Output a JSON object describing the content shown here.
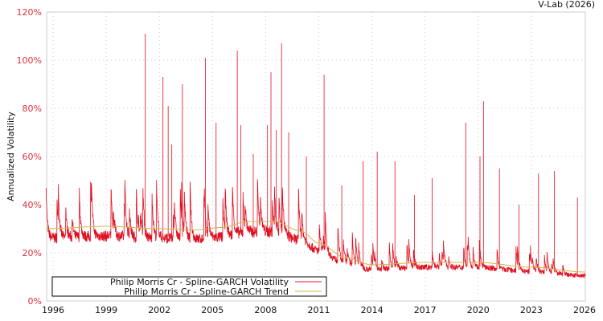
{
  "chart_data": {
    "type": "line",
    "title": "",
    "credit": "V-Lab (2026)",
    "ylabel": "Annualized Volatility",
    "xlabel": "",
    "xlim": [
      1995.6,
      2026.05
    ],
    "ylim": [
      0,
      120
    ],
    "yticks": [
      "0%",
      "20%",
      "40%",
      "60%",
      "80%",
      "100%",
      "120%"
    ],
    "ytick_values": [
      0,
      20,
      40,
      60,
      80,
      100,
      120
    ],
    "xticks": [
      "1996",
      "1999",
      "2002",
      "2005",
      "2008",
      "2011",
      "2014",
      "2017",
      "2020",
      "2023",
      "2026"
    ],
    "xtick_values": [
      1996,
      1999,
      2002,
      2005,
      2008,
      2011,
      2014,
      2017,
      2020,
      2023,
      2026
    ],
    "grid": true,
    "legend_position": "bottom-left",
    "series": [
      {
        "name": "Philip Morris Cr - Spline-GARCH Volatility",
        "color": "#e01020",
        "spikes": [
          [
            2001.2,
            111
          ],
          [
            2002.2,
            93
          ],
          [
            2002.5,
            81
          ],
          [
            2002.7,
            65
          ],
          [
            2003.3,
            90
          ],
          [
            2004.6,
            101
          ],
          [
            2005.2,
            74
          ],
          [
            2006.4,
            104
          ],
          [
            2006.6,
            73
          ],
          [
            2007.3,
            61
          ],
          [
            2008.1,
            73
          ],
          [
            2008.3,
            95
          ],
          [
            2008.6,
            71
          ],
          [
            2008.9,
            107
          ],
          [
            2009.3,
            70
          ],
          [
            2010.3,
            60
          ],
          [
            2011.3,
            94
          ],
          [
            2012.3,
            48
          ],
          [
            2013.5,
            58
          ],
          [
            2014.3,
            62
          ],
          [
            2015.3,
            58
          ],
          [
            2016.4,
            44
          ],
          [
            2017.4,
            51
          ],
          [
            2019.3,
            74
          ],
          [
            2020.1,
            60
          ],
          [
            2020.3,
            83
          ],
          [
            2021.2,
            55
          ],
          [
            2022.3,
            40
          ],
          [
            2023.4,
            53
          ],
          [
            2024.3,
            54
          ],
          [
            2025.6,
            43
          ]
        ]
      },
      {
        "name": "Philip Morris Cr - Spline-GARCH Trend",
        "color": "#d4b44a",
        "knots": [
          [
            1995.6,
            30
          ],
          [
            1999,
            31
          ],
          [
            2002,
            30
          ],
          [
            2004,
            29.5
          ],
          [
            2005.5,
            30.5
          ],
          [
            2007,
            33
          ],
          [
            2008.5,
            33
          ],
          [
            2010,
            29
          ],
          [
            2011,
            24
          ],
          [
            2012.5,
            18
          ],
          [
            2014,
            15
          ],
          [
            2017,
            16
          ],
          [
            2020,
            16
          ],
          [
            2023,
            14
          ],
          [
            2026.05,
            12
          ]
        ]
      }
    ]
  }
}
